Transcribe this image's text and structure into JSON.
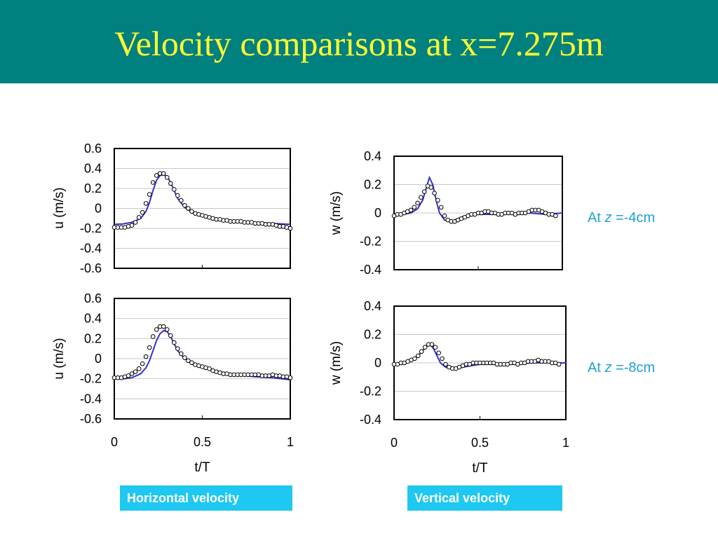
{
  "title": "Velocity comparisons at x=7.275m",
  "notes": [
    {
      "prefix": "At ",
      "var": "z",
      "suffix": " =-4cm"
    },
    {
      "prefix": "At ",
      "var": "z",
      "suffix": " =-8cm"
    }
  ],
  "tags": {
    "horizontal": "Horizontal velocity",
    "vertical": "Vertical velocity"
  },
  "colors": {
    "header": "#00807f",
    "title": "#ffff33",
    "model_line": "#3333cc",
    "note": "#1ea0d8",
    "tag_bg": "#1ec8f0"
  },
  "chart_data": [
    {
      "type": "line",
      "ylabel": "u (m/s)",
      "xlabel": "",
      "xlim": [
        0,
        1
      ],
      "ylim": [
        -0.6,
        0.6
      ],
      "yticks": [
        "0.6",
        "0.4",
        "0.2",
        "0",
        "-0.2",
        "-0.4",
        "-0.6"
      ],
      "grid": true,
      "series": [
        {
          "style": "line",
          "x": [
            0,
            0.05,
            0.1,
            0.15,
            0.18,
            0.2,
            0.22,
            0.24,
            0.26,
            0.28,
            0.3,
            0.32,
            0.34,
            0.36,
            0.4,
            0.45,
            0.5,
            0.6,
            0.7,
            0.8,
            0.9,
            1.0
          ],
          "y": [
            -0.16,
            -0.155,
            -0.14,
            -0.1,
            -0.03,
            0.06,
            0.18,
            0.28,
            0.33,
            0.34,
            0.32,
            0.26,
            0.18,
            0.1,
            0.01,
            -0.05,
            -0.08,
            -0.11,
            -0.13,
            -0.14,
            -0.15,
            -0.16
          ]
        },
        {
          "style": "markers",
          "x": [
            0,
            0.02,
            0.04,
            0.06,
            0.08,
            0.1,
            0.12,
            0.14,
            0.16,
            0.18,
            0.2,
            0.22,
            0.24,
            0.26,
            0.28,
            0.3,
            0.32,
            0.34,
            0.36,
            0.38,
            0.4,
            0.42,
            0.44,
            0.46,
            0.48,
            0.5,
            0.52,
            0.54,
            0.56,
            0.58,
            0.6,
            0.62,
            0.64,
            0.66,
            0.68,
            0.7,
            0.72,
            0.74,
            0.76,
            0.78,
            0.8,
            0.82,
            0.84,
            0.86,
            0.88,
            0.9,
            0.92,
            0.94,
            0.96,
            0.98,
            1.0
          ],
          "y": [
            -0.19,
            -0.19,
            -0.19,
            -0.19,
            -0.18,
            -0.17,
            -0.14,
            -0.09,
            -0.04,
            0.05,
            0.14,
            0.26,
            0.33,
            0.35,
            0.35,
            0.31,
            0.25,
            0.19,
            0.13,
            0.08,
            0.03,
            0.0,
            -0.03,
            -0.05,
            -0.06,
            -0.07,
            -0.08,
            -0.09,
            -0.1,
            -0.11,
            -0.11,
            -0.12,
            -0.12,
            -0.13,
            -0.13,
            -0.13,
            -0.13,
            -0.14,
            -0.14,
            -0.14,
            -0.15,
            -0.15,
            -0.15,
            -0.16,
            -0.16,
            -0.16,
            -0.17,
            -0.18,
            -0.18,
            -0.19,
            -0.2
          ]
        }
      ]
    },
    {
      "type": "line",
      "ylabel": "w (m/s)",
      "xlabel": "",
      "xlim": [
        0,
        1
      ],
      "ylim": [
        -0.4,
        0.4
      ],
      "yticks": [
        "0.4",
        "0.2",
        "0",
        "-0.2",
        "-0.4"
      ],
      "grid": true,
      "series": [
        {
          "style": "line",
          "x": [
            0,
            0.05,
            0.1,
            0.14,
            0.17,
            0.19,
            0.21,
            0.23,
            0.25,
            0.27,
            0.3,
            0.33,
            0.36,
            0.4,
            0.45,
            0.5,
            0.6,
            0.7,
            0.8,
            0.9,
            1.0
          ],
          "y": [
            -0.02,
            -0.01,
            0.0,
            0.03,
            0.09,
            0.17,
            0.25,
            0.2,
            0.09,
            0.0,
            -0.05,
            -0.06,
            -0.05,
            -0.03,
            -0.01,
            -0.01,
            -0.01,
            0.0,
            0.0,
            -0.01,
            0.0
          ]
        },
        {
          "style": "markers",
          "x": [
            0,
            0.02,
            0.04,
            0.06,
            0.08,
            0.1,
            0.12,
            0.14,
            0.16,
            0.18,
            0.2,
            0.22,
            0.24,
            0.26,
            0.28,
            0.3,
            0.32,
            0.34,
            0.36,
            0.38,
            0.4,
            0.42,
            0.44,
            0.46,
            0.48,
            0.5,
            0.52,
            0.54,
            0.56,
            0.58,
            0.6,
            0.62,
            0.64,
            0.66,
            0.68,
            0.7,
            0.72,
            0.74,
            0.76,
            0.78,
            0.8,
            0.82,
            0.84,
            0.86,
            0.88,
            0.9,
            0.92,
            0.94,
            0.96
          ],
          "y": [
            -0.02,
            -0.01,
            -0.01,
            0.0,
            0.01,
            0.02,
            0.04,
            0.07,
            0.11,
            0.15,
            0.19,
            0.18,
            0.14,
            0.09,
            0.04,
            -0.02,
            -0.05,
            -0.06,
            -0.06,
            -0.05,
            -0.04,
            -0.03,
            -0.02,
            -0.01,
            -0.01,
            0.0,
            0.0,
            0.01,
            0.01,
            0.0,
            0.0,
            -0.01,
            -0.01,
            0.0,
            0.0,
            0.0,
            -0.01,
            0.0,
            0.0,
            0.0,
            0.01,
            0.02,
            0.02,
            0.02,
            0.01,
            0.0,
            -0.01,
            -0.01,
            -0.02
          ]
        }
      ]
    },
    {
      "type": "line",
      "ylabel": "u (m/s)",
      "xlabel": "t/T",
      "xlim": [
        0,
        1
      ],
      "ylim": [
        -0.6,
        0.6
      ],
      "xticks": [
        "0",
        "0.5",
        "1"
      ],
      "yticks": [
        "0.6",
        "0.4",
        "0.2",
        "0",
        "-0.2",
        "-0.4",
        "-0.6"
      ],
      "grid": true,
      "series": [
        {
          "style": "line",
          "x": [
            0,
            0.05,
            0.1,
            0.15,
            0.18,
            0.2,
            0.22,
            0.24,
            0.26,
            0.28,
            0.3,
            0.32,
            0.34,
            0.36,
            0.4,
            0.45,
            0.5,
            0.6,
            0.7,
            0.8,
            0.9,
            1.0
          ],
          "y": [
            -0.2,
            -0.2,
            -0.19,
            -0.15,
            -0.09,
            -0.02,
            0.08,
            0.18,
            0.25,
            0.28,
            0.27,
            0.22,
            0.15,
            0.08,
            0.0,
            -0.06,
            -0.09,
            -0.13,
            -0.16,
            -0.18,
            -0.19,
            -0.21
          ]
        },
        {
          "style": "markers",
          "x": [
            0,
            0.02,
            0.04,
            0.06,
            0.08,
            0.1,
            0.12,
            0.14,
            0.16,
            0.18,
            0.2,
            0.22,
            0.24,
            0.26,
            0.28,
            0.3,
            0.32,
            0.34,
            0.36,
            0.38,
            0.4,
            0.42,
            0.44,
            0.46,
            0.48,
            0.5,
            0.52,
            0.54,
            0.56,
            0.58,
            0.6,
            0.62,
            0.64,
            0.66,
            0.68,
            0.7,
            0.72,
            0.74,
            0.76,
            0.78,
            0.8,
            0.82,
            0.84,
            0.86,
            0.88,
            0.9,
            0.92,
            0.94,
            0.96,
            0.98,
            1.0
          ],
          "y": [
            -0.19,
            -0.19,
            -0.19,
            -0.18,
            -0.17,
            -0.15,
            -0.13,
            -0.1,
            -0.05,
            0.02,
            0.11,
            0.22,
            0.29,
            0.32,
            0.32,
            0.29,
            0.23,
            0.16,
            0.1,
            0.05,
            0.01,
            -0.02,
            -0.04,
            -0.06,
            -0.07,
            -0.08,
            -0.09,
            -0.1,
            -0.12,
            -0.13,
            -0.14,
            -0.15,
            -0.15,
            -0.16,
            -0.16,
            -0.16,
            -0.16,
            -0.16,
            -0.16,
            -0.16,
            -0.16,
            -0.16,
            -0.17,
            -0.17,
            -0.17,
            -0.16,
            -0.17,
            -0.17,
            -0.18,
            -0.18,
            -0.19
          ]
        }
      ]
    },
    {
      "type": "line",
      "ylabel": "w (m/s)",
      "xlabel": "t/T",
      "xlim": [
        0,
        1
      ],
      "ylim": [
        -0.4,
        0.4
      ],
      "xticks": [
        "0",
        "0.5",
        "1"
      ],
      "yticks": [
        "0.4",
        "0.2",
        "0",
        "-0.2",
        "-0.4"
      ],
      "grid": true,
      "series": [
        {
          "style": "line",
          "x": [
            0,
            0.05,
            0.1,
            0.14,
            0.17,
            0.19,
            0.21,
            0.23,
            0.25,
            0.27,
            0.3,
            0.33,
            0.36,
            0.4,
            0.45,
            0.5,
            0.6,
            0.7,
            0.8,
            0.9,
            1.0
          ],
          "y": [
            -0.01,
            0.0,
            0.02,
            0.05,
            0.09,
            0.12,
            0.13,
            0.1,
            0.05,
            0.0,
            -0.03,
            -0.04,
            -0.04,
            -0.03,
            -0.02,
            -0.01,
            -0.01,
            -0.01,
            0.0,
            0.0,
            0.0
          ]
        },
        {
          "style": "markers",
          "x": [
            0,
            0.02,
            0.04,
            0.06,
            0.08,
            0.1,
            0.12,
            0.14,
            0.16,
            0.18,
            0.2,
            0.22,
            0.24,
            0.26,
            0.28,
            0.3,
            0.32,
            0.34,
            0.36,
            0.38,
            0.4,
            0.42,
            0.44,
            0.46,
            0.48,
            0.5,
            0.52,
            0.54,
            0.56,
            0.58,
            0.6,
            0.62,
            0.64,
            0.66,
            0.68,
            0.7,
            0.72,
            0.74,
            0.76,
            0.78,
            0.8,
            0.82,
            0.84,
            0.86,
            0.88,
            0.9,
            0.92,
            0.94,
            0.96
          ],
          "y": [
            -0.01,
            -0.01,
            0.0,
            0.0,
            0.01,
            0.02,
            0.03,
            0.05,
            0.08,
            0.11,
            0.13,
            0.13,
            0.11,
            0.07,
            0.03,
            -0.01,
            -0.03,
            -0.04,
            -0.04,
            -0.03,
            -0.02,
            -0.01,
            -0.01,
            0.0,
            0.0,
            0.0,
            0.0,
            0.0,
            0.0,
            0.0,
            -0.01,
            -0.01,
            -0.01,
            -0.01,
            0.0,
            0.0,
            -0.01,
            0.0,
            0.0,
            0.01,
            0.01,
            0.01,
            0.02,
            0.01,
            0.01,
            0.01,
            0.0,
            0.0,
            -0.01
          ]
        }
      ]
    }
  ]
}
